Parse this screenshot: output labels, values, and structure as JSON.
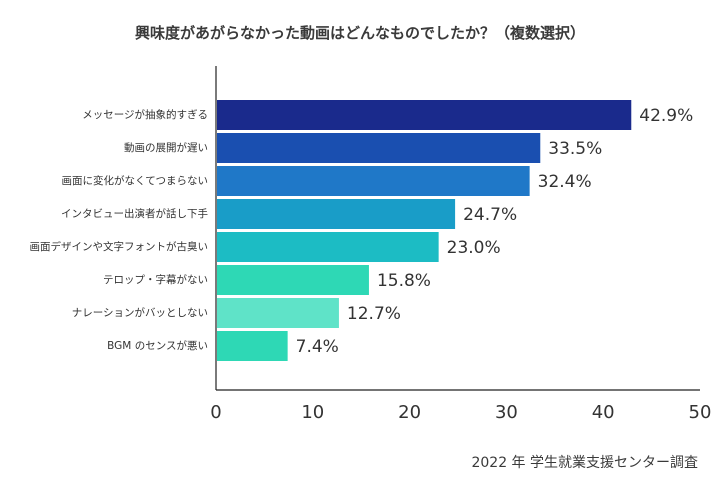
{
  "chart_data": {
    "type": "bar",
    "orientation": "horizontal",
    "title": "興味度があがらなかった動画はどんなものでしたか？（複数選択）",
    "categories": [
      "メッセージが抽象的すぎる",
      "動画の展開が遅い",
      "画面に変化がなくてつまらない",
      "インタビュー出演者が話し下手",
      "画面デザインや文字フォントが古臭い",
      "テロップ・字幕がない",
      "ナレーションがバッとしない",
      "BGM のセンスが悪い"
    ],
    "values": [
      42.9,
      33.5,
      32.4,
      24.7,
      23.0,
      15.8,
      12.7,
      7.4
    ],
    "value_labels": [
      "42.9%",
      "33.5%",
      "32.4%",
      "24.7%",
      "23.0%",
      "15.8%",
      "12.7%",
      "7.4%"
    ],
    "colors": [
      "#1a2a8c",
      "#1a4fb0",
      "#1f78c8",
      "#199dc8",
      "#1cbcc4",
      "#2ed8b5",
      "#5fe3c8",
      "#2ed8b5"
    ],
    "xlim": [
      0,
      50
    ],
    "xticks": [
      "0",
      "10",
      "20",
      "30",
      "40",
      "50"
    ],
    "grid": false,
    "legend": "none"
  },
  "source_note": "2022 年 学生就業支援センター調査"
}
